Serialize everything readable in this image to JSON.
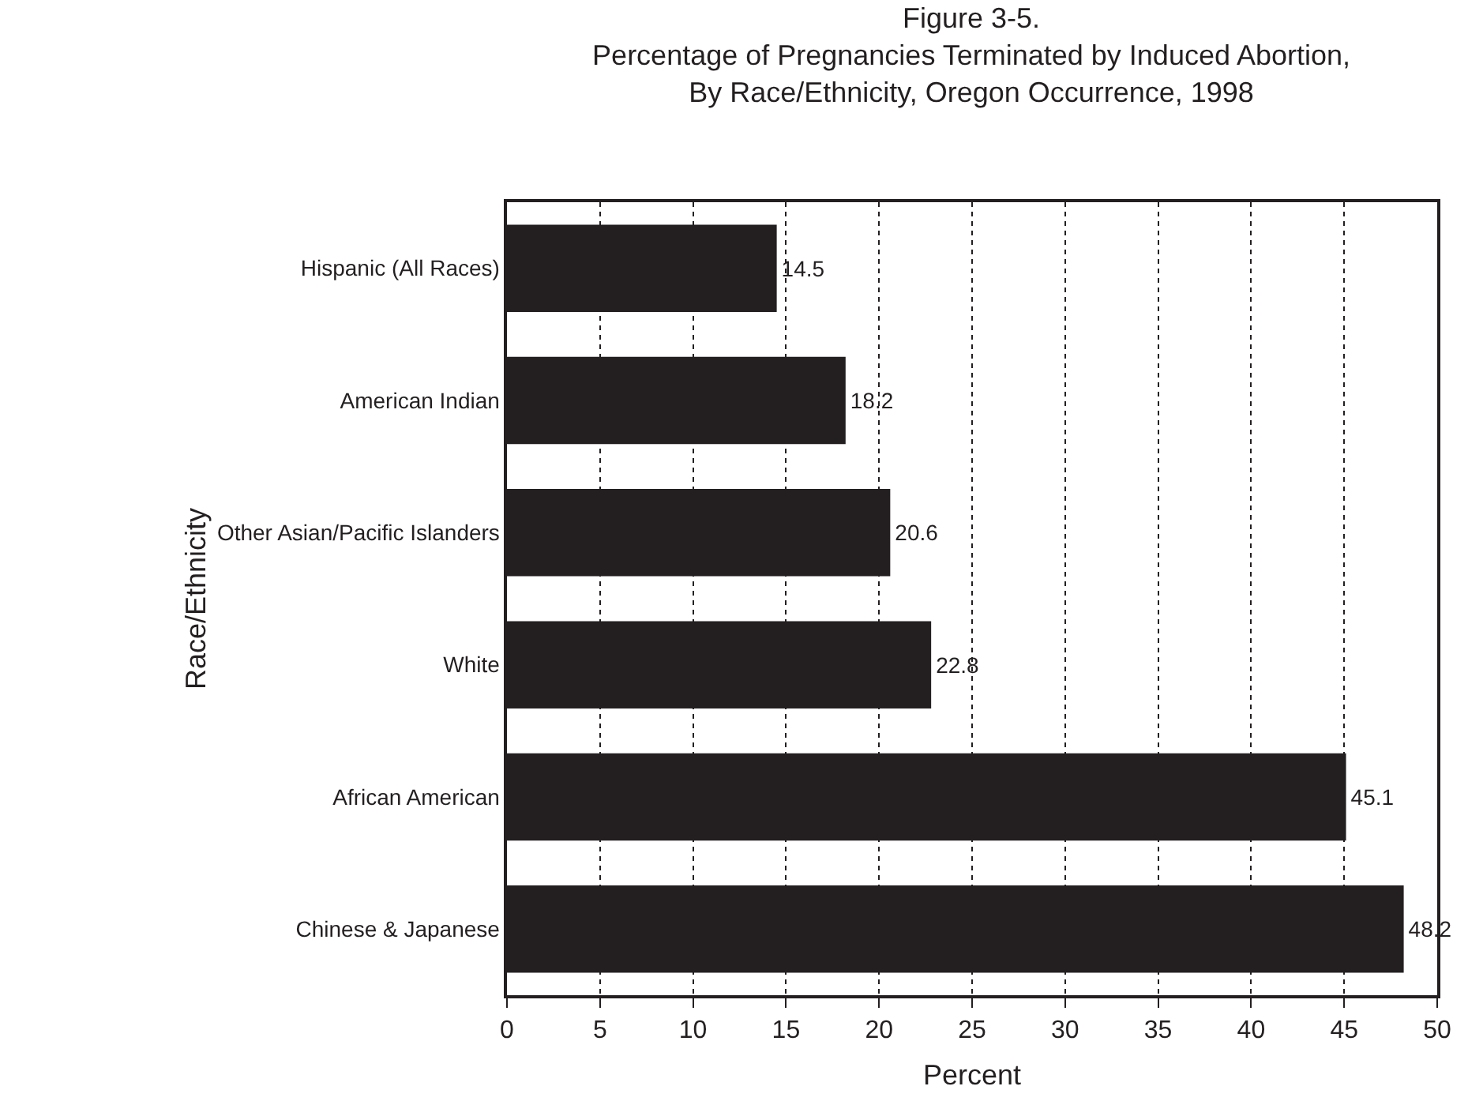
{
  "chart_data": {
    "type": "bar",
    "orientation": "horizontal",
    "title": "Figure 3-5.\nPercentage of Pregnancies Terminated by Induced Abortion,\nBy Race/Ethnicity, Oregon Occurrence, 1998",
    "xlabel": "Percent",
    "ylabel": "Race/Ethnicity",
    "categories": [
      "Hispanic (All Races)",
      "American Indian",
      "Other Asian/Pacific Islanders",
      "White",
      "African American",
      "Chinese & Japanese"
    ],
    "values": [
      14.5,
      18.2,
      20.6,
      22.8,
      45.1,
      48.2
    ],
    "color": "#231f20",
    "data_labels": true,
    "xlim": [
      0,
      50
    ],
    "xticks": [
      0,
      5,
      10,
      15,
      20,
      25,
      30,
      35,
      40,
      45,
      50
    ],
    "grid": "x",
    "legend": false
  }
}
